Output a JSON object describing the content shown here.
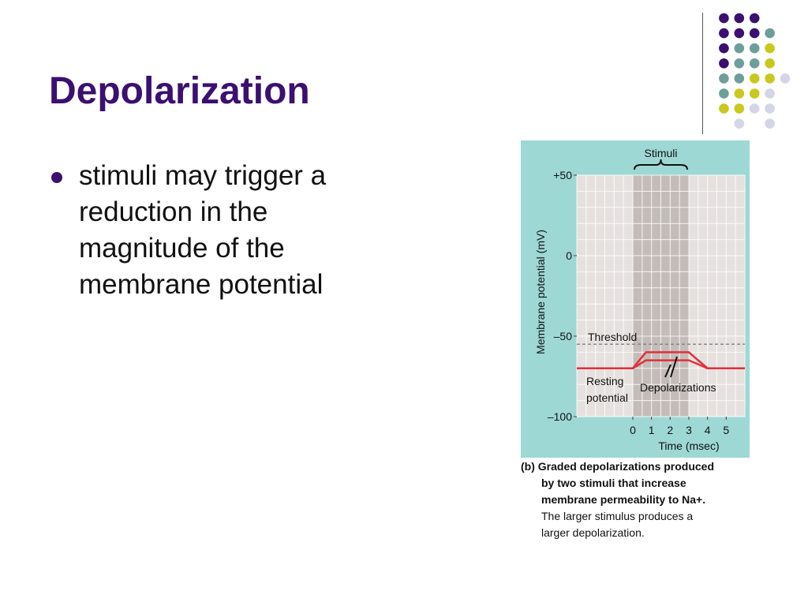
{
  "slide": {
    "title": "Depolarization",
    "bullets": [
      "stimuli may trigger a reduction in the magnitude of the membrane potential"
    ]
  },
  "decoration": {
    "dot_colors": {
      "purple": "#3b1070",
      "teal": "#6e9e9a",
      "yellow": "#c8c81e",
      "lavender": "#d5d5e8"
    }
  },
  "chart_data": {
    "type": "line",
    "title": "",
    "xlabel": "Time (msec)",
    "ylabel": "Membrane potential (mV)",
    "x_ticks": [
      "0",
      "1",
      "2",
      "3",
      "4",
      "5"
    ],
    "y_ticks": [
      "+50",
      "0",
      "–50",
      "–100"
    ],
    "xlim": [
      -3,
      6
    ],
    "ylim": [
      -100,
      50
    ],
    "stimulus_window": [
      0,
      3
    ],
    "annotations": {
      "stimuli": "Stimuli",
      "threshold": "Threshold",
      "resting": [
        "Resting",
        "potential"
      ],
      "depolarizations": "Depolarizations"
    },
    "threshold_value": -55,
    "series": [
      {
        "x": [
          -3,
          0,
          0.7,
          3,
          4,
          6
        ],
        "y": [
          -70,
          -70,
          -60,
          -60,
          -70,
          -70
        ]
      },
      {
        "x": [
          -3,
          0,
          0.7,
          3,
          4,
          6
        ],
        "y": [
          -70,
          -70,
          -65,
          -65,
          -70,
          -70
        ]
      }
    ],
    "colors": {
      "outer_bg": "#9dd8d5",
      "plot_bg": "#e6e1de",
      "grid": "#ffffff",
      "stimulus_band": "#c3bcb8",
      "trace": "#e0303a",
      "threshold": "#888888"
    },
    "caption": {
      "bold_lines": [
        "(b) Graded depolarizations produced",
        "by two stimuli that increase",
        "membrane permeability to Na+."
      ],
      "lines": [
        "The larger stimulus produces a",
        "larger depolarization."
      ]
    }
  }
}
